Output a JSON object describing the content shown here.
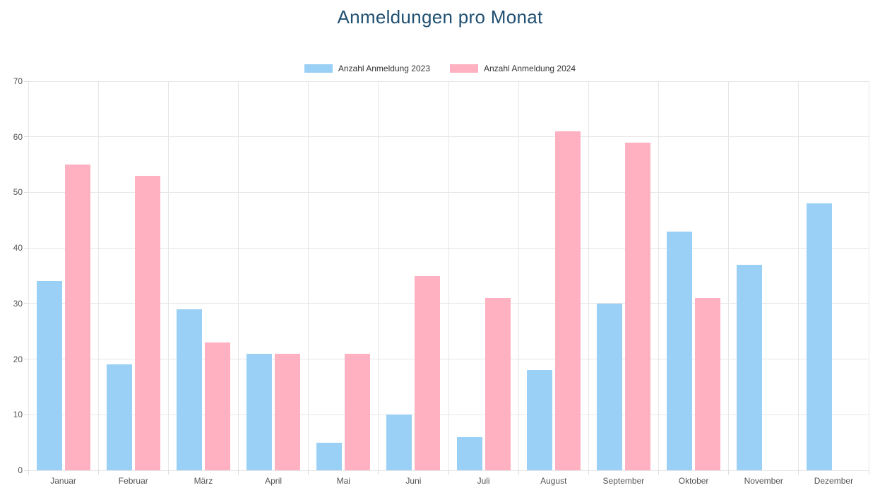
{
  "title": "Anmeldungen pro Monat",
  "colors": {
    "title": "#205072",
    "series_2023": "#9ad0f5",
    "series_2024": "#ffb1c1",
    "grid": "#e6e6e6",
    "tick_label": "#545454",
    "legend_text": "#333333",
    "background": "#ffffff"
  },
  "legend": {
    "items": [
      {
        "label": "Anzahl Anmeldung 2023",
        "color": "#9ad0f5"
      },
      {
        "label": "Anzahl Anmeldung 2024",
        "color": "#ffb1c1"
      }
    ]
  },
  "chart_data": {
    "type": "bar",
    "title": "Anmeldungen pro Monat",
    "categories": [
      "Januar",
      "Februar",
      "März",
      "April",
      "Mai",
      "Juni",
      "Juli",
      "August",
      "September",
      "Oktober",
      "November",
      "Dezember"
    ],
    "series": [
      {
        "name": "Anzahl Anmeldung 2023",
        "color": "#9ad0f5",
        "values": [
          34,
          19,
          29,
          21,
          5,
          10,
          6,
          18,
          30,
          43,
          37,
          48
        ]
      },
      {
        "name": "Anzahl Anmeldung 2024",
        "color": "#ffb1c1",
        "values": [
          55,
          53,
          23,
          21,
          21,
          35,
          31,
          61,
          59,
          31,
          0,
          0
        ]
      }
    ],
    "xlabel": "",
    "ylabel": "",
    "ylim": [
      0,
      70
    ],
    "yticks": [
      0,
      10,
      20,
      30,
      40,
      50,
      60,
      70
    ],
    "grid": true,
    "legend_position": "top"
  }
}
